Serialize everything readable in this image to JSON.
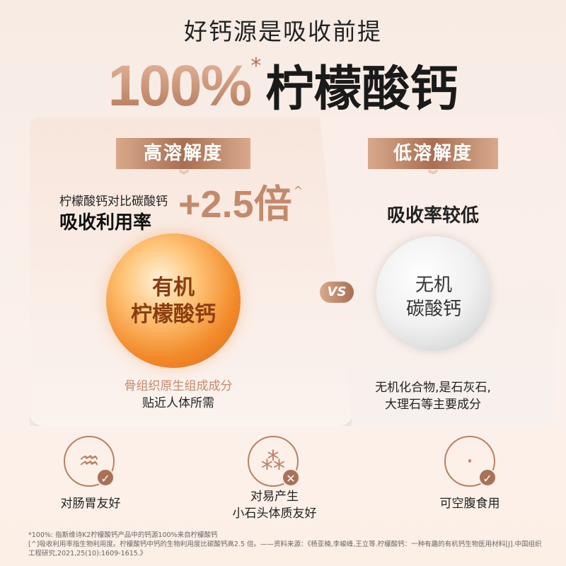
{
  "headline": "好钙源是吸收前提",
  "hero": {
    "percent": "100%",
    "asterisk": "*",
    "name": "柠檬酸钙"
  },
  "left": {
    "badge": "高溶解度",
    "chevron": "︾",
    "compare": "柠檬酸钙对比碳酸钙",
    "metric": "吸收利用率",
    "multiplier": "+2.5倍",
    "caret": "^",
    "orb_line1": "有机",
    "orb_line2": "柠檬酸钙",
    "desc1": "骨组织原生组成成分",
    "desc2": "贴近人体所需"
  },
  "vs": "VS",
  "right": {
    "badge": "低溶解度",
    "chevron": "︾",
    "metric": "吸收率较低",
    "orb_line1": "无机",
    "orb_line2": "碳酸钙",
    "desc1": "无机化合物,是石灰石,",
    "desc2": "大理石等主要成分"
  },
  "features": [
    {
      "icon": "stomach-icon",
      "mark": "check",
      "label1": "对肠胃友好",
      "label2": ""
    },
    {
      "icon": "stones-icon",
      "mark": "cross",
      "label1": "对易产生",
      "label2": "小石头体质友好"
    },
    {
      "icon": "belly-icon",
      "mark": "check",
      "label1": "可空腹食用",
      "label2": ""
    }
  ],
  "footnotes": {
    "line1": "*100%: 指斯维诗K2柠檬酸钙产品中的钙源100%来自柠檬酸钙",
    "line2": "[^]吸收利用率指生物利用度。柠檬酸钙中钙的生物利用度比碳酸钙高2.5 倍。——资料来源：《杨亚楠,李峻峰,王立等.柠檬酸钙：一种有趣的有机钙生物医用材料[J].中国组织工程研究,2021,25(10):1609-1615.》"
  },
  "colors": {
    "accent": "#b07656",
    "orange": "#f28a2a",
    "lightAccent": "#d9a98c"
  }
}
